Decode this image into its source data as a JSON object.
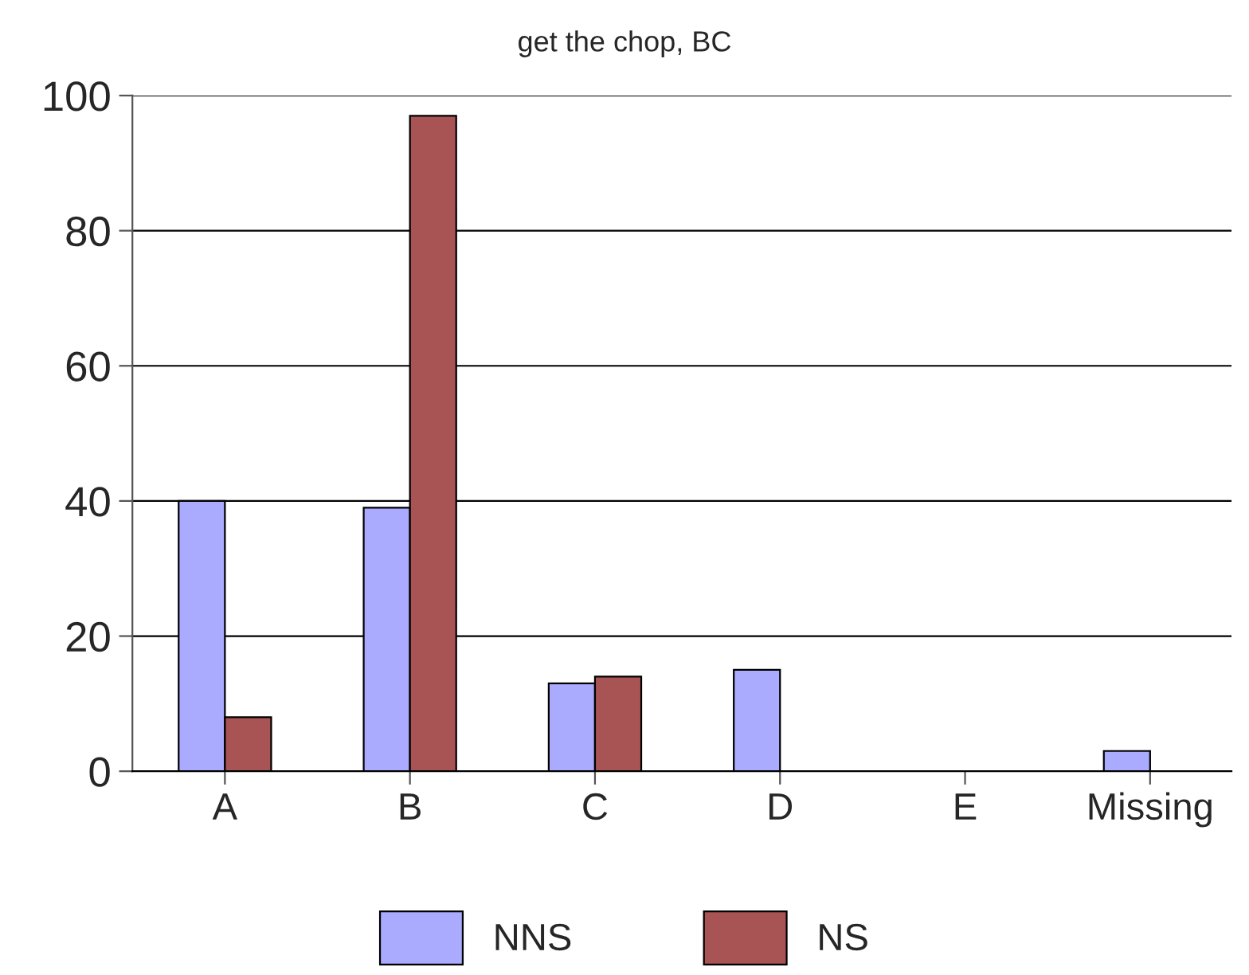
{
  "chart_data": {
    "type": "bar",
    "title": "get the chop, BC",
    "categories": [
      "A",
      "B",
      "C",
      "D",
      "E",
      "Missing"
    ],
    "series": [
      {
        "name": "NNS",
        "color": "#aaaaff",
        "values": [
          40,
          39,
          13,
          15,
          null,
          3
        ]
      },
      {
        "name": "NS",
        "color": "#a85454",
        "values": [
          8,
          97,
          14,
          null,
          null,
          null
        ]
      }
    ],
    "ylim": [
      0,
      100
    ],
    "yticks": [
      0,
      20,
      40,
      60,
      80,
      100
    ],
    "grid": "y",
    "legend": "bottom"
  }
}
